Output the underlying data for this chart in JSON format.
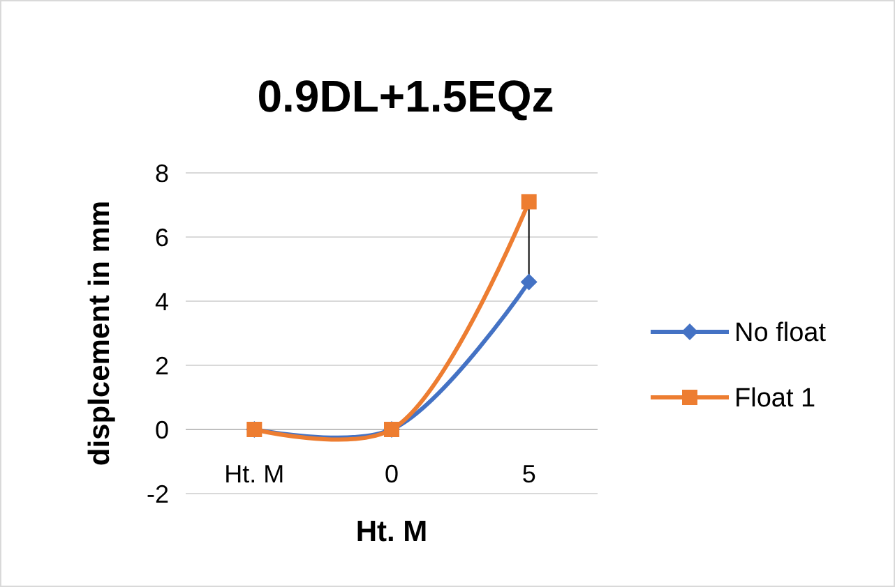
{
  "chart_data": {
    "type": "line",
    "title": "0.9DL+1.5EQz",
    "xlabel": "Ht. M",
    "ylabel": "displcement in mm",
    "categories": [
      "Ht. M",
      "0",
      "5"
    ],
    "series": [
      {
        "name": "No float",
        "color": "#4472c4",
        "values": [
          0,
          0,
          4.6
        ],
        "marker": "diamond"
      },
      {
        "name": "Float 1",
        "color": "#ed7d31",
        "values": [
          0,
          0,
          7.1
        ],
        "marker": "square"
      }
    ],
    "ylim": [
      -2,
      8
    ],
    "yticks": [
      -2,
      0,
      2,
      4,
      6,
      8
    ],
    "grid": "y",
    "legend": "right"
  }
}
